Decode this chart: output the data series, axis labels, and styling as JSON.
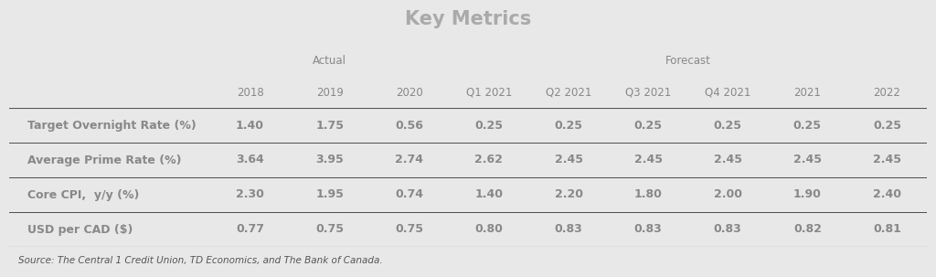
{
  "title": "Key Metrics",
  "title_bg": "#0a0a0a",
  "title_color": "#aaaaaa",
  "header_bg": "#c8d98a",
  "col_headers": [
    "2018",
    "2019",
    "2020",
    "Q1 2021",
    "Q2 2021",
    "Q3 2021",
    "Q4 2021",
    "2021",
    "2022"
  ],
  "actual_label": "Actual",
  "forecast_label": "Forecast",
  "actual_cols": [
    0,
    1,
    2
  ],
  "forecast_cols": [
    3,
    4,
    5,
    6,
    7,
    8
  ],
  "row_labels": [
    "Target Overnight Rate (%)",
    "Average Prime Rate (%)",
    "Core CPI,  y/y (%)",
    "USD per CAD ($)"
  ],
  "data": [
    [
      "1.40",
      "1.75",
      "0.56",
      "0.25",
      "0.25",
      "0.25",
      "0.25",
      "0.25",
      "0.25"
    ],
    [
      "3.64",
      "3.95",
      "2.74",
      "2.62",
      "2.45",
      "2.45",
      "2.45",
      "2.45",
      "2.45"
    ],
    [
      "2.30",
      "1.95",
      "0.74",
      "1.40",
      "2.20",
      "1.80",
      "2.00",
      "1.90",
      "2.40"
    ],
    [
      "0.77",
      "0.75",
      "0.75",
      "0.80",
      "0.83",
      "0.83",
      "0.83",
      "0.82",
      "0.81"
    ]
  ],
  "source_text": "Source: The Central 1 Credit Union, TD Economics, and The Bank of Canada.",
  "data_bg": "#111111",
  "data_text_color": "#888888",
  "row_label_color": "#888888",
  "header_text_color": "#888888",
  "source_text_color": "#555555",
  "outer_bg": "#e8e8e8",
  "title_fontsize": 15,
  "header_fontsize": 8.5,
  "data_fontsize": 9,
  "source_fontsize": 7.5
}
